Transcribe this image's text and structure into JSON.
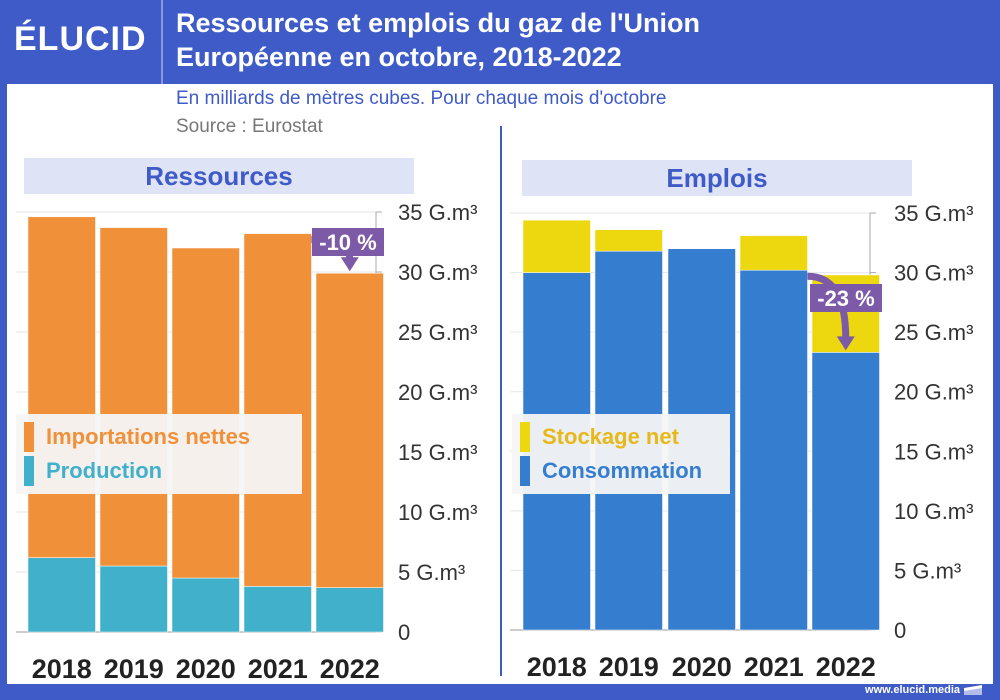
{
  "header": {
    "logo": "ÉLUCID",
    "title_line1": "Ressources et emplois du gaz de l'Union",
    "title_line2": "Européenne en octobre, 2018-2022",
    "subtitle": "En milliards de mètres cubes. Pour chaque mois d'octobre",
    "source": "Source : Eurostat"
  },
  "footer": {
    "url": "www.elucid.media"
  },
  "colors": {
    "brand": "#3f5bc8",
    "importations": "#f0913a",
    "production": "#41b1cb",
    "stockage": "#edd80f",
    "consommation": "#357ecf",
    "annotation": "#7d5aa8"
  },
  "chart_data": [
    {
      "type": "bar",
      "stacked": true,
      "title": "Ressources",
      "categories": [
        "2018",
        "2019",
        "2020",
        "2021",
        "2022"
      ],
      "series": [
        {
          "name": "Production",
          "values": [
            6.2,
            5.5,
            4.5,
            3.8,
            3.7
          ]
        },
        {
          "name": "Importations nettes",
          "values": [
            28.4,
            28.2,
            27.5,
            29.4,
            26.2
          ]
        }
      ],
      "totals": [
        34.6,
        33.7,
        32.0,
        33.2,
        29.9
      ],
      "ylim": [
        0,
        35
      ],
      "yticks": [
        "0",
        "5 G.m³",
        "10 G.m³",
        "15 G.m³",
        "20 G.m³",
        "25 G.m³",
        "30 G.m³",
        "35 G.m³"
      ],
      "ytick_values": [
        0,
        5,
        10,
        15,
        20,
        25,
        30,
        35
      ],
      "axis_position": "right",
      "grid": true,
      "legend": [
        "Importations nettes",
        "Production"
      ],
      "legend_position": "middle-left",
      "annotation": {
        "text": "-10 %",
        "from": "2021",
        "to": "2022"
      }
    },
    {
      "type": "bar",
      "stacked": true,
      "title": "Emplois",
      "categories": [
        "2018",
        "2019",
        "2020",
        "2021",
        "2022"
      ],
      "series": [
        {
          "name": "Consommation",
          "values": [
            30.0,
            31.8,
            32.0,
            30.2,
            23.3
          ]
        },
        {
          "name": "Stockage net",
          "values": [
            4.4,
            1.8,
            0.0,
            2.9,
            6.5
          ]
        }
      ],
      "totals": [
        34.4,
        33.6,
        32.0,
        33.1,
        29.8
      ],
      "ylim": [
        0,
        35
      ],
      "yticks": [
        "0",
        "5 G.m³",
        "10 G.m³",
        "15 G.m³",
        "20 G.m³",
        "25 G.m³",
        "30 G.m³",
        "35 G.m³"
      ],
      "ytick_values": [
        0,
        5,
        10,
        15,
        20,
        25,
        30,
        35
      ],
      "axis_position": "right",
      "grid": true,
      "legend": [
        "Stockage net",
        "Consommation"
      ],
      "legend_position": "middle-left",
      "annotation": {
        "text": "-23 %",
        "from": "2021",
        "to": "2022"
      }
    }
  ]
}
